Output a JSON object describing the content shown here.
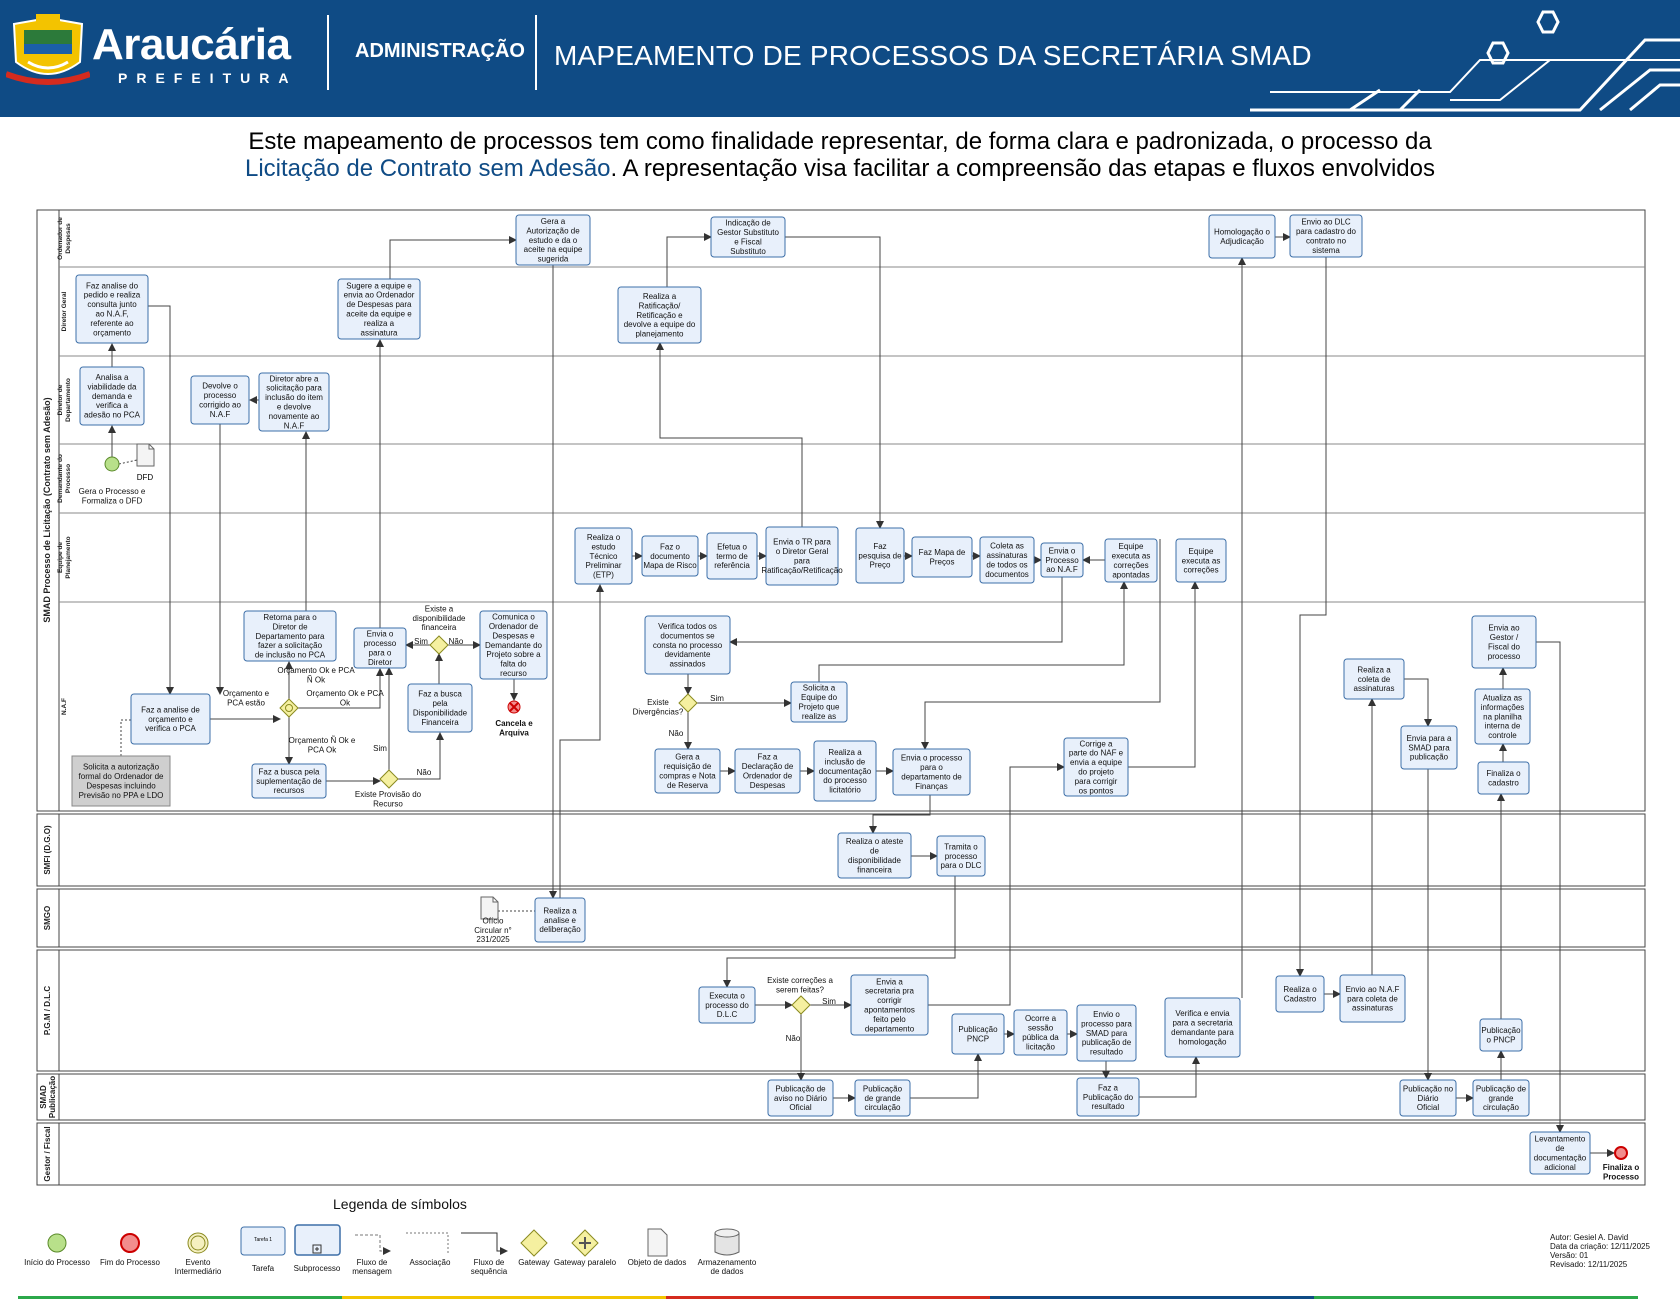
{
  "header": {
    "logo_name": "Araucária",
    "logo_sub": "PREFEITURA",
    "section": "ADMINISTRAÇÃO",
    "title": "MAPEAMENTO DE PROCESSOS DA SECRETÁRIA SMAD",
    "brand_color": "#0f4b85"
  },
  "intro": {
    "line1": "Este mapeamento de processos tem como finalidade representar, de forma clara e padronizada, o processo da",
    "highlight": "Licitação de Contrato sem Adesão",
    "line2_rest": ". A representação visa facilitar a compreensão das etapas e fluxos envolvidos"
  },
  "pool_label": "SMAD Processo de Licitação (Contrato sem Adesão)",
  "lanes": [
    "Ordenador de Despesas",
    "Diretor Geral",
    "Diretor de Departamento",
    "Demandante do Processo",
    "Equipe de Planejamento",
    "N.A.F",
    "SMFI (D.G.O)",
    "SMGO",
    "P.G.M / D.L.C",
    "SMAD Publicação",
    "Gestor / Fiscal"
  ],
  "tasks": {
    "t_gera_autorizacao": "Gera a Autorização de estudo e da o aceite na equipe sugerida",
    "t_indicacao_gestor": "Indicação de Gestor Substituto e Fiscal Substituto",
    "t_homologacao": "Homologação o Adjudicação",
    "t_envio_dlc": "Envio ao DLC para cadastro do contrato no sistema",
    "t_faz_analise_pedido": "Faz analise do pedido e realiza consulta junto ao N.A.F, referente ao orçamento",
    "t_sugere_equipe": "Sugere a equipe e envia ao Ordenador de Despesas para aceite da equipe e realiza a assinatura",
    "t_realiza_ratificacao": "Realiza a Ratificação/ Retificação e devolve a equipe do planejamento",
    "t_analisa_viabilidade": "Analisa a viabilidade da demanda e verifica a adesão no PCA",
    "t_devolve_processo": "Devolve o processo corrigido ao N.A.F",
    "t_diretor_abre": "Diretor abre a solicitação para inclusão do item e devolve novamente ao N.A.F",
    "t_realiza_etp": "Realiza o estudo Técnico Preliminar (ETP)",
    "t_mapa_risco": "Faz o documento Mapa de Risco",
    "t_termo_referencia": "Efetua o termo de referência",
    "t_envia_tr": "Envia o TR para o Diretor Geral para Ratificação/Retificação",
    "t_pesquisa_preco": "Faz pesquisa de Preço",
    "t_mapa_precos": "Faz Mapa de Preços",
    "t_coleta_assinaturas_eq": "Coleta as assinaturas de todos os documentos",
    "t_envia_naf": "Envia o Processo ao N.A.F",
    "t_equipe_executa_apontadas": "Equipe executa as correções apontadas",
    "t_equipe_executa": "Equipe executa as correções",
    "t_faz_analise_orcamento": "Faz a analise de orçamento e verifica o PCA",
    "t_solicita_autorizacao": "Solicita a autorização formal do Ordenador de Despesas incluindo Previsão no PPA e LDO",
    "t_retorna_diretor": "Retorna para o Diretor de Departamento para fazer a solicitação de inclusão no PCA",
    "t_busca_suplementacao": "Faz a busca pela suplementação de recursos",
    "t_envia_diretor": "Envia o processo para o Diretor",
    "t_busca_disponibilidade": "Faz a busca pela Disponibilidade Financeira",
    "t_comunica_ordenador": "Comunica o Ordenador de Despesas e Demandante do Projeto sobre a falta do recurso",
    "t_verifica_documentos": "Verifica todos os documentos se consta no processo devidamente assinados",
    "t_solicita_equipe": "Solicita a Equipe do Projeto que realize as",
    "t_gera_requisicao": "Gera a requisição de compras e Nota de Reserva",
    "t_declaracao_ordenador": "Faz a Declaração de Ordenador de Despesas",
    "t_inclusao_documentacao": "Realiza a inclusão de documentação do processo licitatório",
    "t_envia_financas": "Envia o processo para o departamento de Finanças",
    "t_corrige_naf": "Corrige a parte do NAF e envia a equipe do projeto para corrigir os pontos",
    "t_coleta_assinaturas_naf": "Realiza a coleta de assinaturas",
    "t_envia_smad": "Envia para a SMAD para publicação",
    "t_envia_gestor": "Envia ao Gestor / Fiscal do processo",
    "t_atualiza_planilha": "Atualiza as informações na planilha interna de controle",
    "t_finaliza_cadastro": "Finaliza o cadastro",
    "t_ateste_disponibilidade": "Realiza o ateste de disponibilidade financeira",
    "t_tramita_dlc": "Tramita o processo para o DLC",
    "t_analise_deliberacao": "Realiza a analise e deliberação",
    "t_executa_dlc": "Executa o processo do D.L.C",
    "t_envia_secretaria": "Envia a secretaria pra corrigir apontamentos feito pelo departamento",
    "t_publicacao_pncp": "Publicação PNCP",
    "t_sessao_publica": "Ocorre a sessão pública da licitação",
    "t_envio_smad_resultado": "Envio o processo para SMAD para publicação de resultado",
    "t_verifica_envia": "Verifica e envia para a secretaria demandante para homologação",
    "t_realiza_cadastro": "Realiza o Cadastro",
    "t_envio_naf_assinaturas": "Envio ao N.A.F para coleta de assinaturas",
    "t_publicacao_pncp2": "Publicação o PNCP",
    "t_pub_aviso_diario": "Publicação de aviso no Diário Oficial",
    "t_pub_grande_circ": "Publicação de grande circulação",
    "t_pub_resultado": "Faz a Publicação do resultado",
    "t_pub_diario_oficial": "Publicação no Diário Oficial",
    "t_pub_grande_circ2": "Publicação de grande circulação",
    "t_levantamento": "Levantamento de documentação adicional"
  },
  "labels": {
    "start_event": "Gera o Processo e Formaliza o DFD",
    "dfd": "DFD",
    "oficio": "Ofício Circular n° 231/2025",
    "g1_a": "Orçamento e PCA estão",
    "g1_b": "Orçamento Ok e PCA Ñ Ok",
    "g1_c": "Orçamento Ok e PCA Ok",
    "g1_d": "Orçamento Ñ Ok e PCA Ok",
    "g2_name": "Existe Provisão do Recurso",
    "sim": "Sim",
    "nao": "Não",
    "g3_name": "Existe a disponibilidade financeira",
    "cancel_event": "Cancela e Arquiva",
    "g4_name": "Existe Divergências?",
    "g5_name": "Existe correções a serem feitas?",
    "end_event": "Finaliza o Processo"
  },
  "legend": {
    "title": "Legenda de símbolos",
    "items": [
      "Início do Processo",
      "Fim do Processo",
      "Evento Intermediário",
      "Tarefa",
      "Subprocesso",
      "Fluxo de mensagem",
      "Associação",
      "Fluxo de sequência",
      "Gateway",
      "Gateway paralelo",
      "Objeto de dados",
      "Armazenamento de dados"
    ],
    "task_sample": "Tarefa 1"
  },
  "meta": {
    "author": "Autor: Gesiel A. David",
    "created": "Data da criação: 12/11/2025",
    "version": "Versão: 01",
    "revised": "Revisado: 12/11/2025"
  },
  "colors": {
    "task_fill": "#e8f0fb",
    "task_stroke": "#3d6fa8",
    "start_fill": "#b8e08a",
    "end_fill": "#f28d8d",
    "gateway_fill": "#f5f0a0"
  }
}
